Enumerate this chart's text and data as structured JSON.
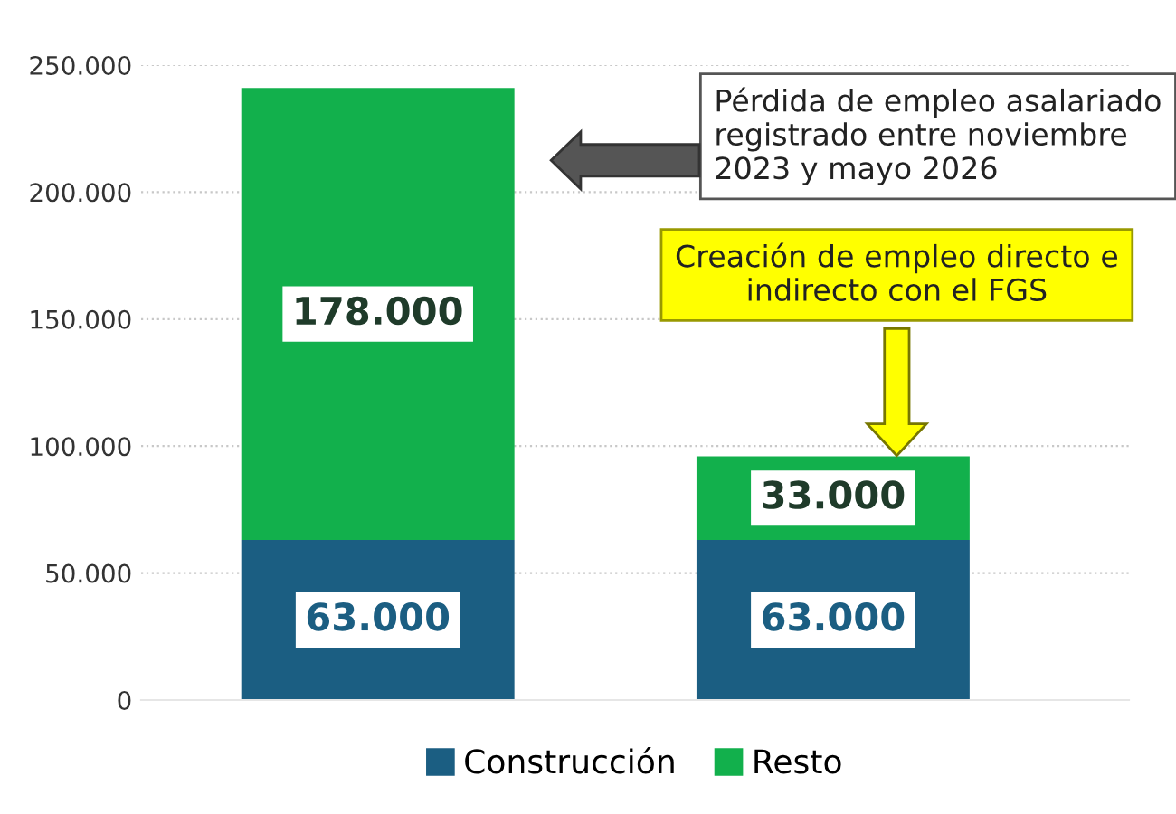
{
  "chart_data": {
    "type": "bar",
    "stacked": true,
    "categories": [
      null,
      null
    ],
    "series": [
      {
        "name": "Construcción",
        "color": "#1b5e82",
        "values": [
          63000,
          63000
        ],
        "value_labels": [
          "63.000",
          "63.000"
        ]
      },
      {
        "name": "Resto",
        "color": "#12b04c",
        "values": [
          178000,
          33000
        ],
        "value_labels": [
          "178.000",
          "33.000"
        ]
      }
    ],
    "ylim": [
      0,
      250000
    ],
    "yticks": [
      {
        "value": 0,
        "label": "0"
      },
      {
        "value": 50000,
        "label": "50.000"
      },
      {
        "value": 100000,
        "label": "100.000"
      },
      {
        "value": 150000,
        "label": "150.000"
      },
      {
        "value": 200000,
        "label": "200.000"
      },
      {
        "value": 250000,
        "label": "250.000"
      }
    ],
    "grid": "y",
    "legend": "bottom",
    "annotations": [
      "Pérdida de empleo asalariado\nregistrado entre noviembre\n2023 y mayo 2026",
      "Creación de empleo directo e\nindirecto con el FGS"
    ]
  }
}
